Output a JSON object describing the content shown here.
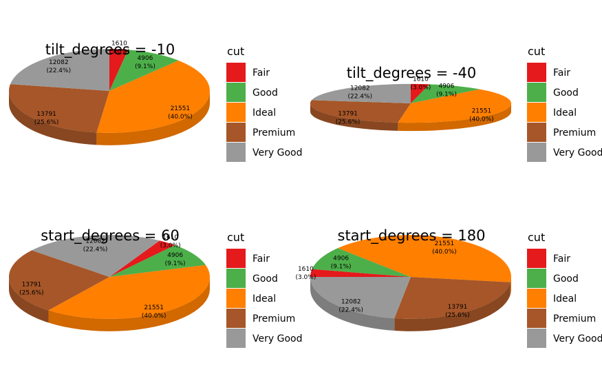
{
  "chart_data": [
    {
      "type": "pie",
      "title": "tilt_degrees = -10",
      "legend_title": "cut",
      "legend_position": "right",
      "categories": [
        "Fair",
        "Good",
        "Ideal",
        "Premium",
        "Very Good"
      ],
      "values": [
        1610,
        4906,
        21551,
        13791,
        12082
      ],
      "percent_labels": [
        "(3.0%)",
        "(9.1%)",
        "(40.0%)",
        "(25.6%)",
        "(22.4%)"
      ],
      "colors": [
        "#e41a1c",
        "#4daf4a",
        "#ff7f00",
        "#a65628",
        "#999999"
      ],
      "start_degrees": 90,
      "tilt_degrees": -10
    },
    {
      "type": "pie",
      "title": "tilt_degrees = -40",
      "legend_title": "cut",
      "legend_position": "right",
      "categories": [
        "Fair",
        "Good",
        "Ideal",
        "Premium",
        "Very Good"
      ],
      "values": [
        1610,
        4906,
        21551,
        13791,
        12082
      ],
      "percent_labels": [
        "(3.0%)",
        "(9.1%)",
        "(40.0%)",
        "(25.6%)",
        "(22.4%)"
      ],
      "colors": [
        "#e41a1c",
        "#4daf4a",
        "#ff7f00",
        "#a65628",
        "#999999"
      ],
      "start_degrees": 90,
      "tilt_degrees": -40
    },
    {
      "type": "pie",
      "title": "start_degrees = 60",
      "legend_title": "cut",
      "legend_position": "right",
      "categories": [
        "Fair",
        "Good",
        "Ideal",
        "Premium",
        "Very Good"
      ],
      "values": [
        1610,
        4906,
        21551,
        13791,
        12082
      ],
      "percent_labels": [
        "(3.0%)",
        "(9.1%)",
        "(40.0%)",
        "(25.6%)",
        "(22.4%)"
      ],
      "colors": [
        "#e41a1c",
        "#4daf4a",
        "#ff7f00",
        "#a65628",
        "#999999"
      ],
      "start_degrees": 60,
      "tilt_degrees": -10
    },
    {
      "type": "pie",
      "title": "start_degrees = 180",
      "legend_title": "cut",
      "legend_position": "right",
      "categories": [
        "Fair",
        "Good",
        "Ideal",
        "Premium",
        "Very Good"
      ],
      "values": [
        1610,
        4906,
        21551,
        13791,
        12082
      ],
      "percent_labels": [
        "(3.0%)",
        "(9.1%)",
        "(40.0%)",
        "(25.6%)",
        "(22.4%)"
      ],
      "colors": [
        "#e41a1c",
        "#4daf4a",
        "#ff7f00",
        "#a65628",
        "#999999"
      ],
      "start_degrees": 180,
      "tilt_degrees": -10
    }
  ]
}
